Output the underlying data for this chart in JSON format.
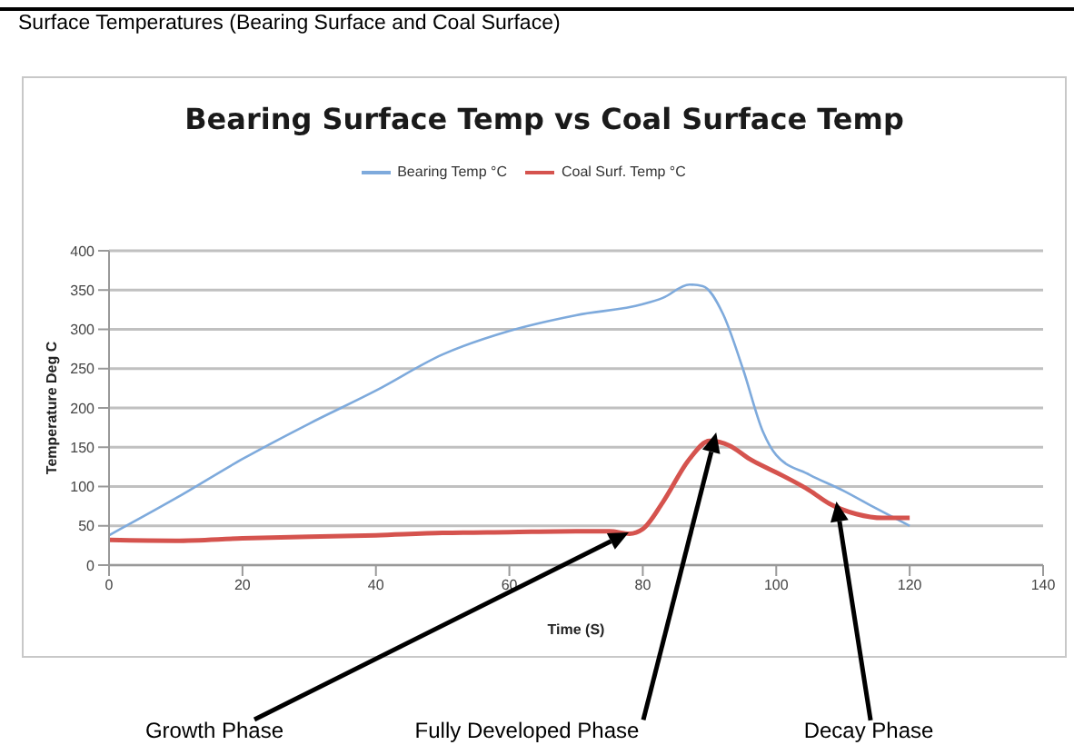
{
  "chart_data": {
    "type": "line",
    "title": "Bearing Surface Temp vs Coal Surface Temp",
    "xlabel": "Time (S)",
    "ylabel": "Temperature Deg C",
    "xlim": [
      0,
      140
    ],
    "xticks": [
      0,
      20,
      40,
      60,
      80,
      100,
      120,
      140
    ],
    "ylim": [
      0,
      400
    ],
    "yticks": [
      0,
      50,
      100,
      150,
      200,
      250,
      300,
      350,
      400
    ],
    "grid": "y",
    "legend": "top",
    "marker": "none",
    "series": [
      {
        "name": "Bearing Temp °C",
        "color": "#7eaadc",
        "x": [
          0,
          10,
          20,
          30,
          40,
          50,
          60,
          70,
          80,
          83,
          87,
          89,
          92,
          95,
          98,
          100,
          105,
          110,
          115,
          120
        ],
        "values": [
          38,
          85,
          135,
          180,
          222,
          268,
          298,
          318,
          332,
          340,
          357,
          355,
          320,
          250,
          170,
          140,
          115,
          95,
          72,
          50
        ]
      },
      {
        "name": "Coal Surf. Temp °C",
        "color": "#d5534e",
        "x": [
          0,
          10,
          20,
          40,
          50,
          60,
          70,
          75,
          78,
          80,
          83,
          87,
          90,
          93,
          96,
          100,
          105,
          108,
          112,
          116,
          120
        ],
        "values": [
          32,
          31,
          34,
          38,
          41,
          42,
          43,
          43,
          40,
          46,
          80,
          135,
          158,
          152,
          135,
          118,
          95,
          78,
          65,
          60,
          60
        ]
      }
    ],
    "annotations": [
      "Surface Temperatures (Bearing Surface and Coal Surface)",
      "Growth Phase",
      {
        "text": "Fully Developed Phase",
        "x": 91,
        "y": 155
      },
      {
        "text": "Decay Phase",
        "x": 109,
        "y": 75
      }
    ]
  }
}
